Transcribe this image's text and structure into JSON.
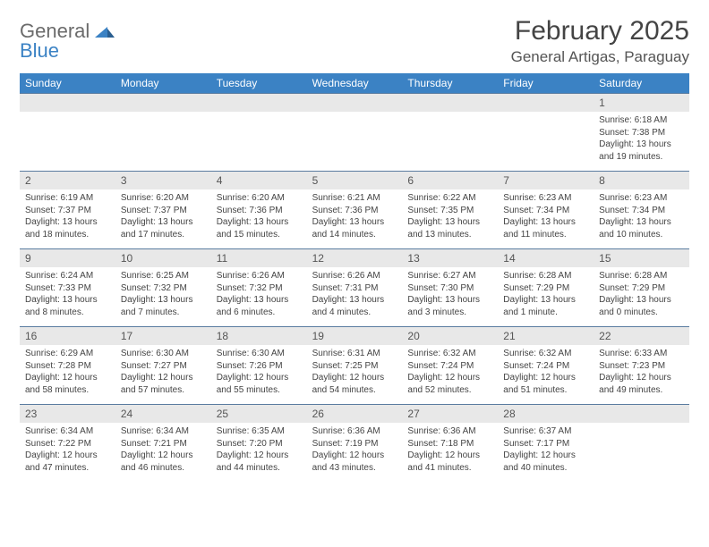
{
  "logo": {
    "line1": "General",
    "line2": "Blue"
  },
  "title": "February 2025",
  "location": "General Artigas, Paraguay",
  "colors": {
    "header_bg": "#3b82c4",
    "daynum_bg": "#e8e8e8",
    "week_border": "#5a7ca0",
    "text": "#444444",
    "logo_gray": "#6b6b6b",
    "logo_blue": "#3b82c4",
    "page_bg": "#ffffff"
  },
  "weekdays": [
    "Sunday",
    "Monday",
    "Tuesday",
    "Wednesday",
    "Thursday",
    "Friday",
    "Saturday"
  ],
  "weeks": [
    [
      {
        "n": "",
        "sunrise": "",
        "sunset": "",
        "daylight": ""
      },
      {
        "n": "",
        "sunrise": "",
        "sunset": "",
        "daylight": ""
      },
      {
        "n": "",
        "sunrise": "",
        "sunset": "",
        "daylight": ""
      },
      {
        "n": "",
        "sunrise": "",
        "sunset": "",
        "daylight": ""
      },
      {
        "n": "",
        "sunrise": "",
        "sunset": "",
        "daylight": ""
      },
      {
        "n": "",
        "sunrise": "",
        "sunset": "",
        "daylight": ""
      },
      {
        "n": "1",
        "sunrise": "Sunrise: 6:18 AM",
        "sunset": "Sunset: 7:38 PM",
        "daylight": "Daylight: 13 hours and 19 minutes."
      }
    ],
    [
      {
        "n": "2",
        "sunrise": "Sunrise: 6:19 AM",
        "sunset": "Sunset: 7:37 PM",
        "daylight": "Daylight: 13 hours and 18 minutes."
      },
      {
        "n": "3",
        "sunrise": "Sunrise: 6:20 AM",
        "sunset": "Sunset: 7:37 PM",
        "daylight": "Daylight: 13 hours and 17 minutes."
      },
      {
        "n": "4",
        "sunrise": "Sunrise: 6:20 AM",
        "sunset": "Sunset: 7:36 PM",
        "daylight": "Daylight: 13 hours and 15 minutes."
      },
      {
        "n": "5",
        "sunrise": "Sunrise: 6:21 AM",
        "sunset": "Sunset: 7:36 PM",
        "daylight": "Daylight: 13 hours and 14 minutes."
      },
      {
        "n": "6",
        "sunrise": "Sunrise: 6:22 AM",
        "sunset": "Sunset: 7:35 PM",
        "daylight": "Daylight: 13 hours and 13 minutes."
      },
      {
        "n": "7",
        "sunrise": "Sunrise: 6:23 AM",
        "sunset": "Sunset: 7:34 PM",
        "daylight": "Daylight: 13 hours and 11 minutes."
      },
      {
        "n": "8",
        "sunrise": "Sunrise: 6:23 AM",
        "sunset": "Sunset: 7:34 PM",
        "daylight": "Daylight: 13 hours and 10 minutes."
      }
    ],
    [
      {
        "n": "9",
        "sunrise": "Sunrise: 6:24 AM",
        "sunset": "Sunset: 7:33 PM",
        "daylight": "Daylight: 13 hours and 8 minutes."
      },
      {
        "n": "10",
        "sunrise": "Sunrise: 6:25 AM",
        "sunset": "Sunset: 7:32 PM",
        "daylight": "Daylight: 13 hours and 7 minutes."
      },
      {
        "n": "11",
        "sunrise": "Sunrise: 6:26 AM",
        "sunset": "Sunset: 7:32 PM",
        "daylight": "Daylight: 13 hours and 6 minutes."
      },
      {
        "n": "12",
        "sunrise": "Sunrise: 6:26 AM",
        "sunset": "Sunset: 7:31 PM",
        "daylight": "Daylight: 13 hours and 4 minutes."
      },
      {
        "n": "13",
        "sunrise": "Sunrise: 6:27 AM",
        "sunset": "Sunset: 7:30 PM",
        "daylight": "Daylight: 13 hours and 3 minutes."
      },
      {
        "n": "14",
        "sunrise": "Sunrise: 6:28 AM",
        "sunset": "Sunset: 7:29 PM",
        "daylight": "Daylight: 13 hours and 1 minute."
      },
      {
        "n": "15",
        "sunrise": "Sunrise: 6:28 AM",
        "sunset": "Sunset: 7:29 PM",
        "daylight": "Daylight: 13 hours and 0 minutes."
      }
    ],
    [
      {
        "n": "16",
        "sunrise": "Sunrise: 6:29 AM",
        "sunset": "Sunset: 7:28 PM",
        "daylight": "Daylight: 12 hours and 58 minutes."
      },
      {
        "n": "17",
        "sunrise": "Sunrise: 6:30 AM",
        "sunset": "Sunset: 7:27 PM",
        "daylight": "Daylight: 12 hours and 57 minutes."
      },
      {
        "n": "18",
        "sunrise": "Sunrise: 6:30 AM",
        "sunset": "Sunset: 7:26 PM",
        "daylight": "Daylight: 12 hours and 55 minutes."
      },
      {
        "n": "19",
        "sunrise": "Sunrise: 6:31 AM",
        "sunset": "Sunset: 7:25 PM",
        "daylight": "Daylight: 12 hours and 54 minutes."
      },
      {
        "n": "20",
        "sunrise": "Sunrise: 6:32 AM",
        "sunset": "Sunset: 7:24 PM",
        "daylight": "Daylight: 12 hours and 52 minutes."
      },
      {
        "n": "21",
        "sunrise": "Sunrise: 6:32 AM",
        "sunset": "Sunset: 7:24 PM",
        "daylight": "Daylight: 12 hours and 51 minutes."
      },
      {
        "n": "22",
        "sunrise": "Sunrise: 6:33 AM",
        "sunset": "Sunset: 7:23 PM",
        "daylight": "Daylight: 12 hours and 49 minutes."
      }
    ],
    [
      {
        "n": "23",
        "sunrise": "Sunrise: 6:34 AM",
        "sunset": "Sunset: 7:22 PM",
        "daylight": "Daylight: 12 hours and 47 minutes."
      },
      {
        "n": "24",
        "sunrise": "Sunrise: 6:34 AM",
        "sunset": "Sunset: 7:21 PM",
        "daylight": "Daylight: 12 hours and 46 minutes."
      },
      {
        "n": "25",
        "sunrise": "Sunrise: 6:35 AM",
        "sunset": "Sunset: 7:20 PM",
        "daylight": "Daylight: 12 hours and 44 minutes."
      },
      {
        "n": "26",
        "sunrise": "Sunrise: 6:36 AM",
        "sunset": "Sunset: 7:19 PM",
        "daylight": "Daylight: 12 hours and 43 minutes."
      },
      {
        "n": "27",
        "sunrise": "Sunrise: 6:36 AM",
        "sunset": "Sunset: 7:18 PM",
        "daylight": "Daylight: 12 hours and 41 minutes."
      },
      {
        "n": "28",
        "sunrise": "Sunrise: 6:37 AM",
        "sunset": "Sunset: 7:17 PM",
        "daylight": "Daylight: 12 hours and 40 minutes."
      },
      {
        "n": "",
        "sunrise": "",
        "sunset": "",
        "daylight": ""
      }
    ]
  ]
}
